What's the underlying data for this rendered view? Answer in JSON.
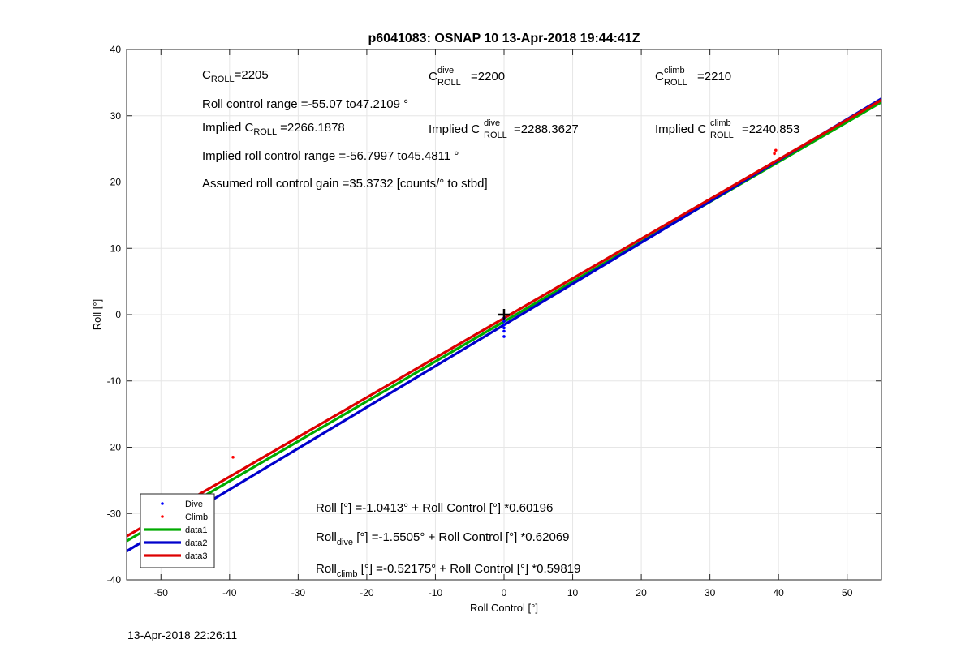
{
  "chart_data": {
    "type": "scatter",
    "title": "p6041083: OSNAP 10 13-Apr-2018 19:44:41Z",
    "xlabel": "Roll Control [°]",
    "ylabel": "Roll [°]",
    "xlim": [
      -55,
      55
    ],
    "ylim": [
      -40,
      40
    ],
    "xticks": [
      -50,
      -40,
      -30,
      -20,
      -10,
      0,
      10,
      20,
      30,
      40,
      50
    ],
    "yticks": [
      -40,
      -30,
      -20,
      -10,
      0,
      10,
      20,
      30,
      40
    ],
    "grid": true,
    "legend_position": "bottom-left",
    "series": [
      {
        "name": "Dive",
        "kind": "points",
        "color": "#0000ff",
        "points": [
          [
            0,
            -0.5
          ],
          [
            0,
            -1.0
          ],
          [
            0,
            -1.5
          ],
          [
            0,
            -2.0
          ],
          [
            0,
            -2.5
          ],
          [
            0,
            -3.3
          ],
          [
            -50,
            -29.0
          ]
        ]
      },
      {
        "name": "Climb",
        "kind": "points",
        "color": "#ff0000",
        "points": [
          [
            -39.5,
            -21.5
          ],
          [
            39.6,
            24.8
          ],
          [
            39.4,
            24.3
          ],
          [
            -50,
            -30.8
          ]
        ]
      },
      {
        "name": "data1",
        "kind": "line",
        "color": "#00aa00",
        "intercept": -1.0413,
        "slope": 0.60196
      },
      {
        "name": "data2",
        "kind": "line",
        "color": "#0000cc",
        "intercept": -1.5505,
        "slope": 0.62069
      },
      {
        "name": "data3",
        "kind": "line",
        "color": "#dd0000",
        "intercept": -0.52175,
        "slope": 0.59819
      }
    ],
    "origin_marker": [
      0,
      0
    ]
  },
  "annotations": {
    "c_roll": {
      "base": "C",
      "sub": "ROLL",
      "value": "=2205"
    },
    "c_roll_dive": {
      "base": "C",
      "sup": "dive",
      "sub": "ROLL",
      "value": "=2200"
    },
    "c_roll_climb": {
      "base": "C",
      "sup": "climb",
      "sub": "ROLL",
      "value": "=2210"
    },
    "roll_control_range": "Roll control range =-55.07 to47.2109 °",
    "implied_c_roll": {
      "prefix": "Implied C",
      "sub": "ROLL",
      "value": "=2266.1878"
    },
    "implied_c_roll_dive": {
      "prefix": "Implied C",
      "sup": "dive",
      "sub": "ROLL",
      "value": "=2288.3627"
    },
    "implied_c_roll_climb": {
      "prefix": "Implied C",
      "sup": "climb",
      "sub": "ROLL",
      "value": "=2240.853"
    },
    "implied_roll_range": "Implied roll control range =-56.7997 to45.4811 °",
    "assumed_gain": "Assumed roll control gain =35.3732 [counts/° to stbd]",
    "fit_all": "Roll [°] =-1.0413° + Roll Control [°] *0.60196",
    "fit_dive": {
      "base": "Roll",
      "sub": "dive",
      "rest": " [°] =-1.5505° + Roll Control [°] *0.62069"
    },
    "fit_climb": {
      "base": "Roll",
      "sub": "climb",
      "rest": " [°] =-0.52175° + Roll Control [°] *0.59819"
    }
  },
  "timestamp": "13-Apr-2018 22:26:11"
}
